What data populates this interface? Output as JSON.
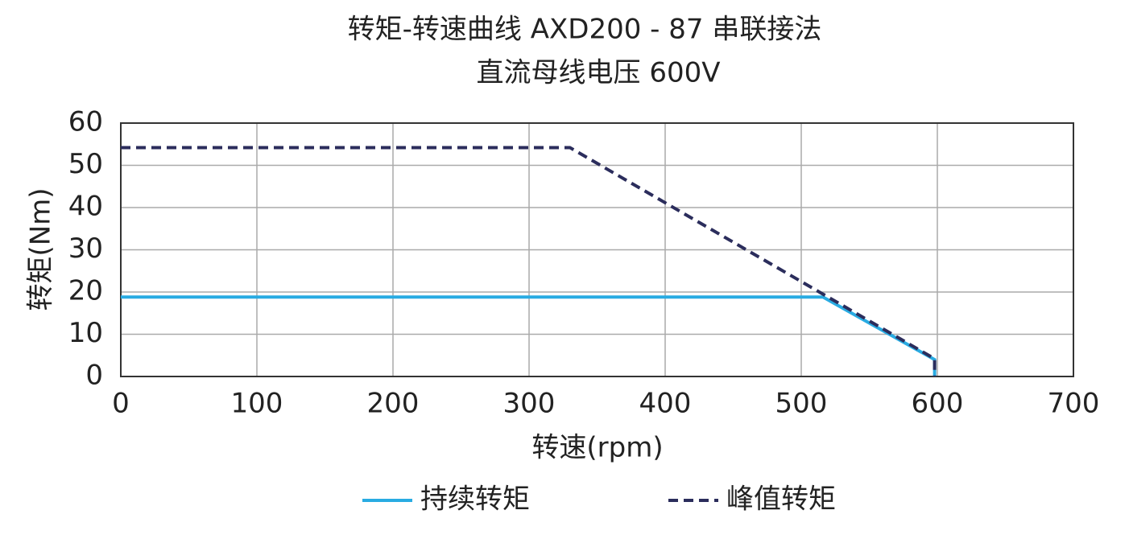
{
  "chart_data": {
    "type": "line",
    "title": "转矩-转速曲线  AXD200  - 87 串联接法",
    "subtitle": "直流母线电压  600V",
    "x_label": "转速(rpm)",
    "y_label": "转矩(Nm)",
    "xlim": [
      0,
      700
    ],
    "xticks": [
      0,
      100,
      200,
      300,
      400,
      500,
      600,
      700
    ],
    "ylim": [
      0,
      60
    ],
    "yticks": [
      0,
      10,
      20,
      30,
      40,
      50,
      60
    ],
    "grid": true,
    "legend": "bottom",
    "series": [
      {
        "name": "持续转矩",
        "color": "#29abe2",
        "dash": false,
        "x": [
          0,
          516,
          598,
          598
        ],
        "values": [
          18.8,
          18.8,
          4,
          0
        ]
      },
      {
        "name": "峰值转矩",
        "color": "#2b2d5c",
        "dash": true,
        "x": [
          0,
          330,
          598,
          598
        ],
        "values": [
          54.2,
          54.2,
          4.2,
          0
        ]
      }
    ]
  }
}
